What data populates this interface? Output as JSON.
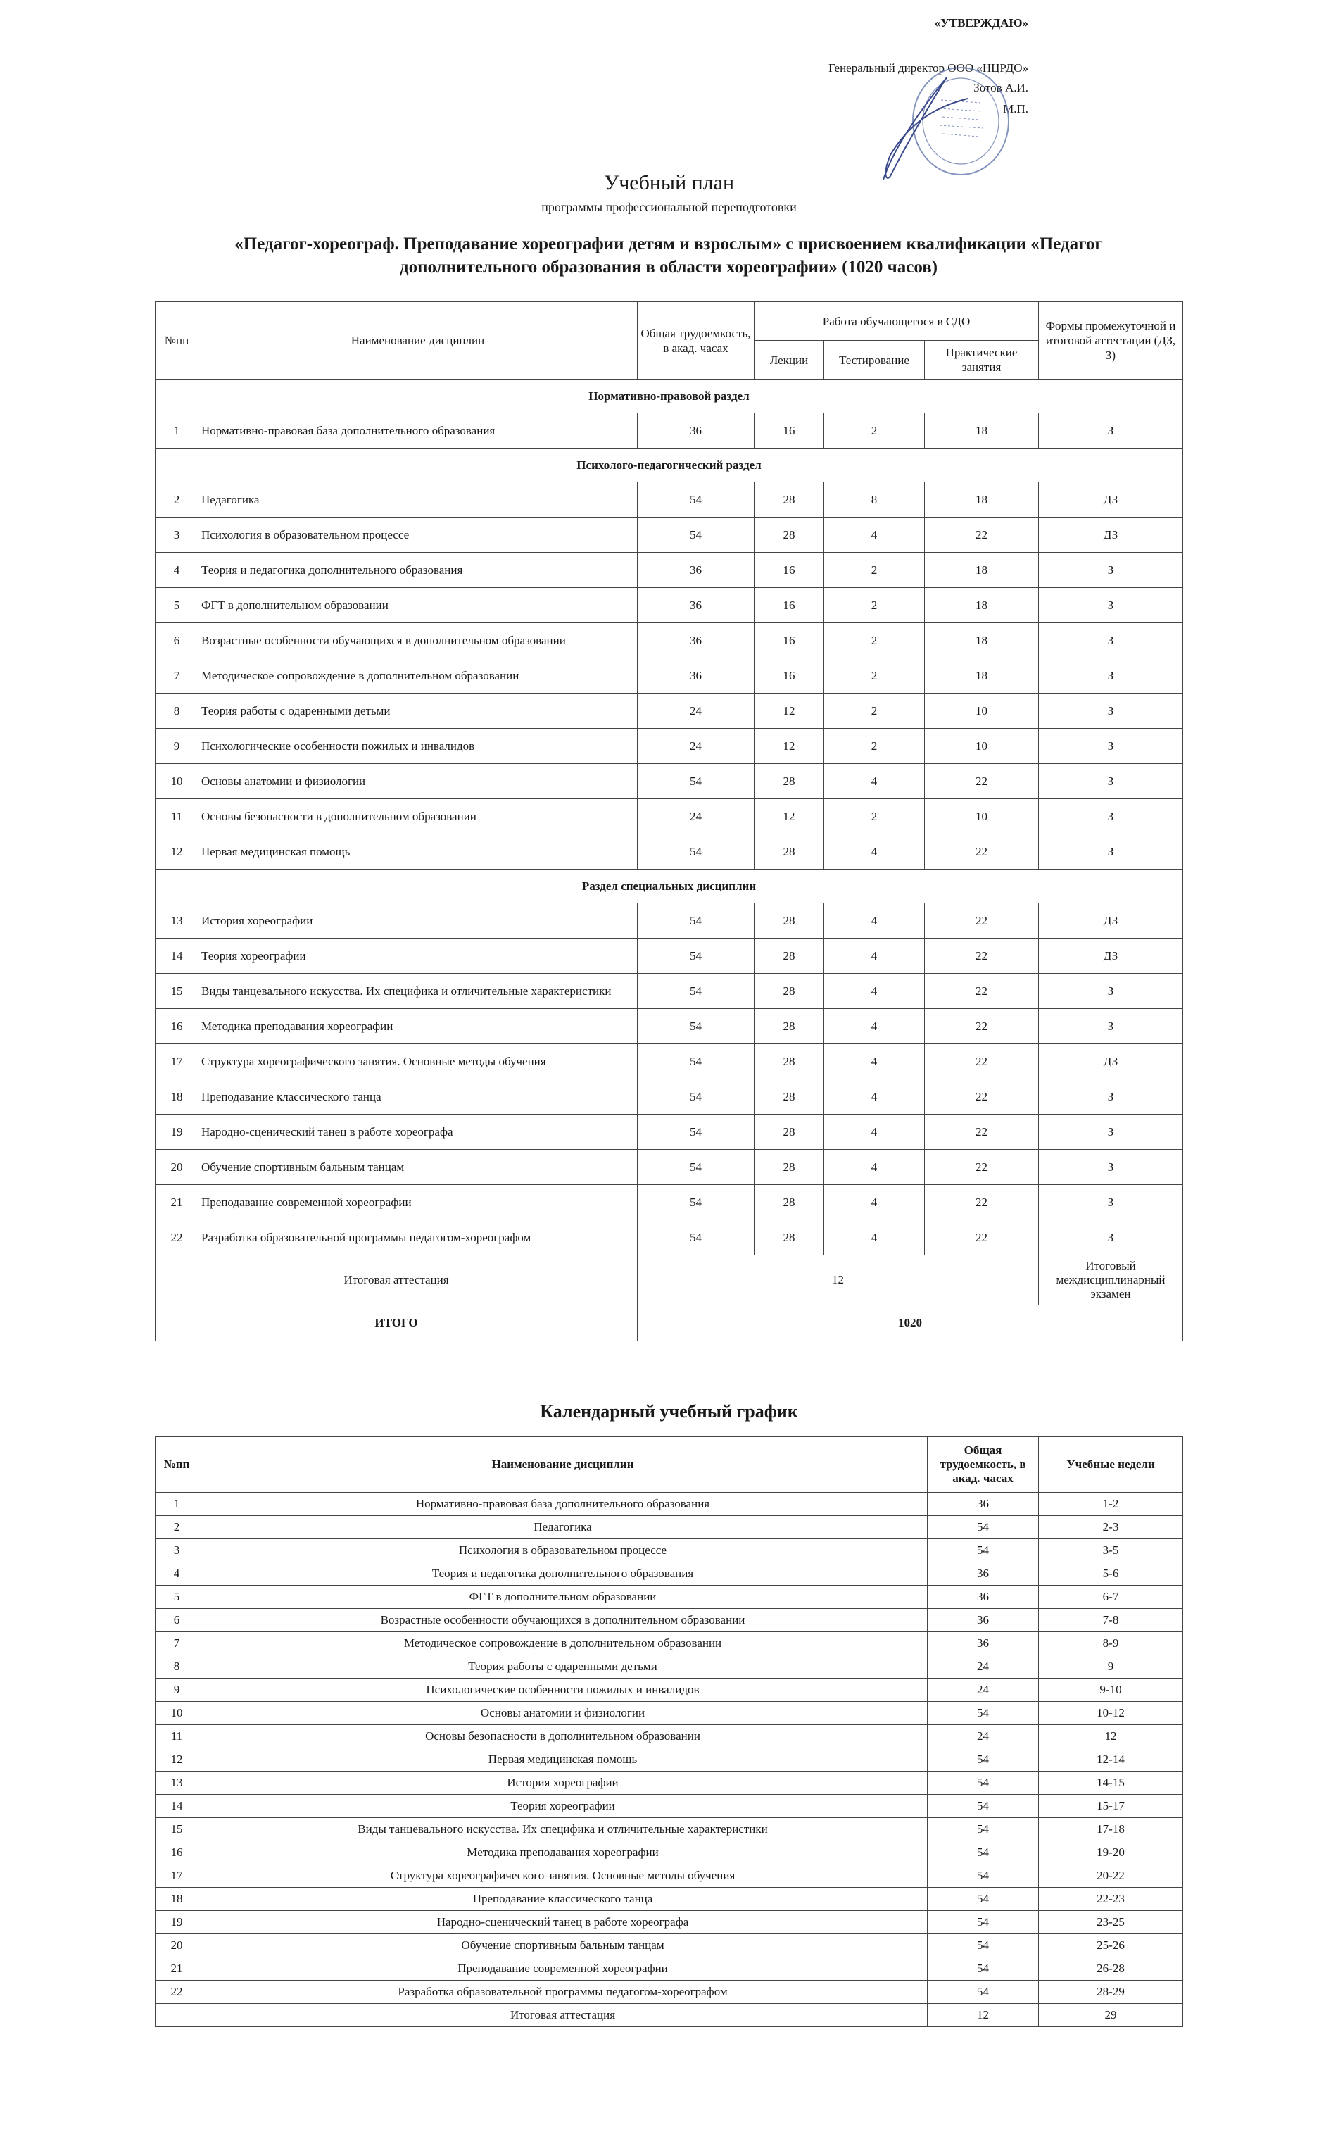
{
  "approval": {
    "heading": "«УТВЕРЖДАЮ»",
    "position": "Генеральный директор ООО «НЦРДО»",
    "name": "Зотов А.И.",
    "seal_mark": "М.П.",
    "stamp_text": "Национальный институт развития дополнительного образования • МОСКВА • ООО",
    "stamp_color": "#5a6fa8"
  },
  "title": "Учебный план",
  "subtitle": "программы профессиональной переподготовки",
  "program": "«Педагог-хореограф. Преподавание хореографии детям и взрослым» с присвоением квалификации «Педагог дополнительного образования в области хореографии» (1020 часов)",
  "plan": {
    "headers": {
      "num": "№пп",
      "name": "Наименование дисциплин",
      "total": "Общая трудоемкость, в акад. часах",
      "work": "Работа обучающегося в СДО",
      "lectures": "Лекции",
      "testing": "Тестирование",
      "practice": "Практические занятия",
      "forms": "Формы промежуточной и итоговой аттестации (ДЗ, З)"
    },
    "sections": [
      {
        "title": "Нормативно-правовой раздел",
        "rows": [
          {
            "n": "1",
            "name": "Нормативно-правовая база дополнительного образования",
            "total": "36",
            "lec": "16",
            "test": "2",
            "prac": "18",
            "form": "З"
          }
        ]
      },
      {
        "title": "Психолого-педагогический раздел",
        "rows": [
          {
            "n": "2",
            "name": "Педагогика",
            "total": "54",
            "lec": "28",
            "test": "8",
            "prac": "18",
            "form": "ДЗ"
          },
          {
            "n": "3",
            "name": "Психология в образовательном процессе",
            "total": "54",
            "lec": "28",
            "test": "4",
            "prac": "22",
            "form": "ДЗ"
          },
          {
            "n": "4",
            "name": "Теория и педагогика дополнительного образования",
            "total": "36",
            "lec": "16",
            "test": "2",
            "prac": "18",
            "form": "З"
          },
          {
            "n": "5",
            "name": "ФГТ в дополнительном образовании",
            "total": "36",
            "lec": "16",
            "test": "2",
            "prac": "18",
            "form": "З"
          },
          {
            "n": "6",
            "name": "Возрастные особенности обучающихся в дополнительном образовании",
            "total": "36",
            "lec": "16",
            "test": "2",
            "prac": "18",
            "form": "З"
          },
          {
            "n": "7",
            "name": "Методическое сопровождение в дополнительном образовании",
            "total": "36",
            "lec": "16",
            "test": "2",
            "prac": "18",
            "form": "З"
          },
          {
            "n": "8",
            "name": "Теория работы с одаренными детьми",
            "total": "24",
            "lec": "12",
            "test": "2",
            "prac": "10",
            "form": "З"
          },
          {
            "n": "9",
            "name": "Психологические особенности пожилых и инвалидов",
            "total": "24",
            "lec": "12",
            "test": "2",
            "prac": "10",
            "form": "З"
          },
          {
            "n": "10",
            "name": "Основы анатомии и физиологии",
            "total": "54",
            "lec": "28",
            "test": "4",
            "prac": "22",
            "form": "З"
          },
          {
            "n": "11",
            "name": "Основы безопасности в дополнительном образовании",
            "total": "24",
            "lec": "12",
            "test": "2",
            "prac": "10",
            "form": "З"
          },
          {
            "n": "12",
            "name": "Первая медицинская помощь",
            "total": "54",
            "lec": "28",
            "test": "4",
            "prac": "22",
            "form": "З"
          }
        ]
      },
      {
        "title": "Раздел специальных дисциплин",
        "rows": [
          {
            "n": "13",
            "name": "История хореографии",
            "total": "54",
            "lec": "28",
            "test": "4",
            "prac": "22",
            "form": "ДЗ"
          },
          {
            "n": "14",
            "name": "Теория хореографии",
            "total": "54",
            "lec": "28",
            "test": "4",
            "prac": "22",
            "form": "ДЗ"
          },
          {
            "n": "15",
            "name": "Виды танцевального искусства. Их специфика и отличительные характеристики",
            "total": "54",
            "lec": "28",
            "test": "4",
            "prac": "22",
            "form": "З"
          },
          {
            "n": "16",
            "name": "Методика преподавания хореографии",
            "total": "54",
            "lec": "28",
            "test": "4",
            "prac": "22",
            "form": "З"
          },
          {
            "n": "17",
            "name": "Структура хореографического занятия. Основные методы обучения",
            "total": "54",
            "lec": "28",
            "test": "4",
            "prac": "22",
            "form": "ДЗ"
          },
          {
            "n": "18",
            "name": "Преподавание классического танца",
            "total": "54",
            "lec": "28",
            "test": "4",
            "prac": "22",
            "form": "З"
          },
          {
            "n": "19",
            "name": "Народно-сценический танец в работе хореографа",
            "total": "54",
            "lec": "28",
            "test": "4",
            "prac": "22",
            "form": "З"
          },
          {
            "n": "20",
            "name": "Обучение спортивным бальным танцам",
            "total": "54",
            "lec": "28",
            "test": "4",
            "prac": "22",
            "form": "З"
          },
          {
            "n": "21",
            "name": "Преподавание современной хореографии",
            "total": "54",
            "lec": "28",
            "test": "4",
            "prac": "22",
            "form": "З"
          },
          {
            "n": "22",
            "name": "Разработка образовательной программы педагогом-хореографом",
            "total": "54",
            "lec": "28",
            "test": "4",
            "prac": "22",
            "form": "З"
          }
        ]
      }
    ],
    "final": {
      "label": "Итоговая аттестация",
      "hours": "12",
      "form": "Итоговый междисциплинарный экзамен"
    },
    "total": {
      "label": "ИТОГО",
      "hours": "1020"
    }
  },
  "calendar": {
    "title": "Календарный учебный график",
    "headers": {
      "num": "№пп",
      "name": "Наименование дисциплин",
      "total": "Общая трудоемкость, в акад. часах",
      "weeks": "Учебные недели"
    },
    "rows": [
      {
        "n": "1",
        "name": "Нормативно-правовая база дополнительного образования",
        "total": "36",
        "weeks": "1-2"
      },
      {
        "n": "2",
        "name": "Педагогика",
        "total": "54",
        "weeks": "2-3"
      },
      {
        "n": "3",
        "name": "Психология в образовательном процессе",
        "total": "54",
        "weeks": "3-5"
      },
      {
        "n": "4",
        "name": "Теория и педагогика дополнительного образования",
        "total": "36",
        "weeks": "5-6"
      },
      {
        "n": "5",
        "name": "ФГТ в дополнительном образовании",
        "total": "36",
        "weeks": "6-7"
      },
      {
        "n": "6",
        "name": "Возрастные особенности обучающихся в дополнительном образовании",
        "total": "36",
        "weeks": "7-8"
      },
      {
        "n": "7",
        "name": "Методическое сопровождение в дополнительном образовании",
        "total": "36",
        "weeks": "8-9"
      },
      {
        "n": "8",
        "name": "Теория работы с одаренными детьми",
        "total": "24",
        "weeks": "9"
      },
      {
        "n": "9",
        "name": "Психологические особенности пожилых и инвалидов",
        "total": "24",
        "weeks": "9-10"
      },
      {
        "n": "10",
        "name": "Основы анатомии и физиологии",
        "total": "54",
        "weeks": "10-12"
      },
      {
        "n": "11",
        "name": "Основы безопасности в дополнительном образовании",
        "total": "24",
        "weeks": "12"
      },
      {
        "n": "12",
        "name": "Первая медицинская помощь",
        "total": "54",
        "weeks": "12-14"
      },
      {
        "n": "13",
        "name": "История хореографии",
        "total": "54",
        "weeks": "14-15"
      },
      {
        "n": "14",
        "name": "Теория хореографии",
        "total": "54",
        "weeks": "15-17"
      },
      {
        "n": "15",
        "name": "Виды танцевального искусства. Их специфика и отличительные характеристики",
        "total": "54",
        "weeks": "17-18"
      },
      {
        "n": "16",
        "name": "Методика преподавания хореографии",
        "total": "54",
        "weeks": "19-20"
      },
      {
        "n": "17",
        "name": "Структура хореографического занятия. Основные методы обучения",
        "total": "54",
        "weeks": "20-22"
      },
      {
        "n": "18",
        "name": "Преподавание классического танца",
        "total": "54",
        "weeks": "22-23"
      },
      {
        "n": "19",
        "name": "Народно-сценический танец в работе хореографа",
        "total": "54",
        "weeks": "23-25"
      },
      {
        "n": "20",
        "name": "Обучение спортивным бальным танцам",
        "total": "54",
        "weeks": "25-26"
      },
      {
        "n": "21",
        "name": "Преподавание современной хореографии",
        "total": "54",
        "weeks": "26-28"
      },
      {
        "n": "22",
        "name": "Разработка образовательной программы педагогом-хореографом",
        "total": "54",
        "weeks": "28-29"
      },
      {
        "n": "",
        "name": "Итоговая аттестация",
        "total": "12",
        "weeks": "29"
      }
    ]
  }
}
